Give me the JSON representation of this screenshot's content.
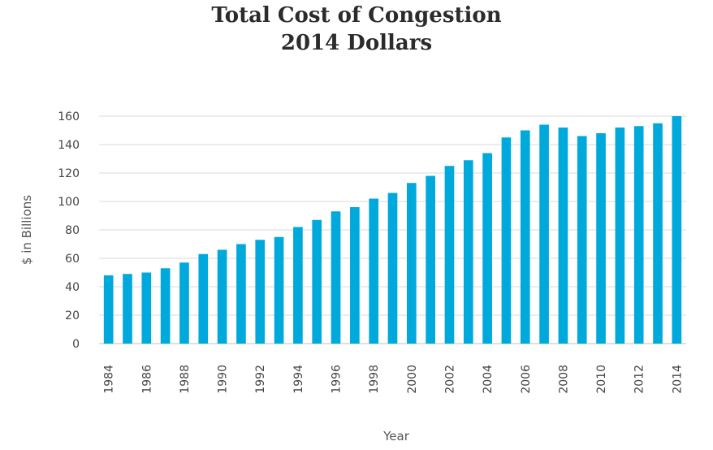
{
  "chart_data": {
    "type": "bar",
    "title": "Total Cost of Congestion",
    "subtitle": "2014 Dollars",
    "xlabel": "Year",
    "ylabel": "$ in Billions",
    "ylim": [
      0,
      160
    ],
    "yticks": [
      0,
      20,
      40,
      60,
      80,
      100,
      120,
      140,
      160
    ],
    "grid": true,
    "bar_color": "#00a9dc",
    "categories": [
      "1984",
      "1985",
      "1986",
      "1987",
      "1988",
      "1989",
      "1990",
      "1991",
      "1992",
      "1993",
      "1994",
      "1995",
      "1996",
      "1997",
      "1998",
      "1999",
      "2000",
      "2001",
      "2002",
      "2003",
      "2004",
      "2005",
      "2006",
      "2007",
      "2008",
      "2009",
      "2010",
      "2011",
      "2012",
      "2013",
      "2014"
    ],
    "tick_labels": [
      "1984",
      "1986",
      "1988",
      "1990",
      "1992",
      "1994",
      "1996",
      "1998",
      "2000",
      "2002",
      "2004",
      "2006",
      "2008",
      "2010",
      "2012",
      "2014"
    ],
    "values": [
      48,
      49,
      50,
      53,
      57,
      63,
      66,
      70,
      73,
      75,
      82,
      87,
      93,
      96,
      102,
      106,
      113,
      118,
      125,
      129,
      134,
      145,
      150,
      154,
      152,
      146,
      148,
      152,
      153,
      155,
      160
    ]
  }
}
